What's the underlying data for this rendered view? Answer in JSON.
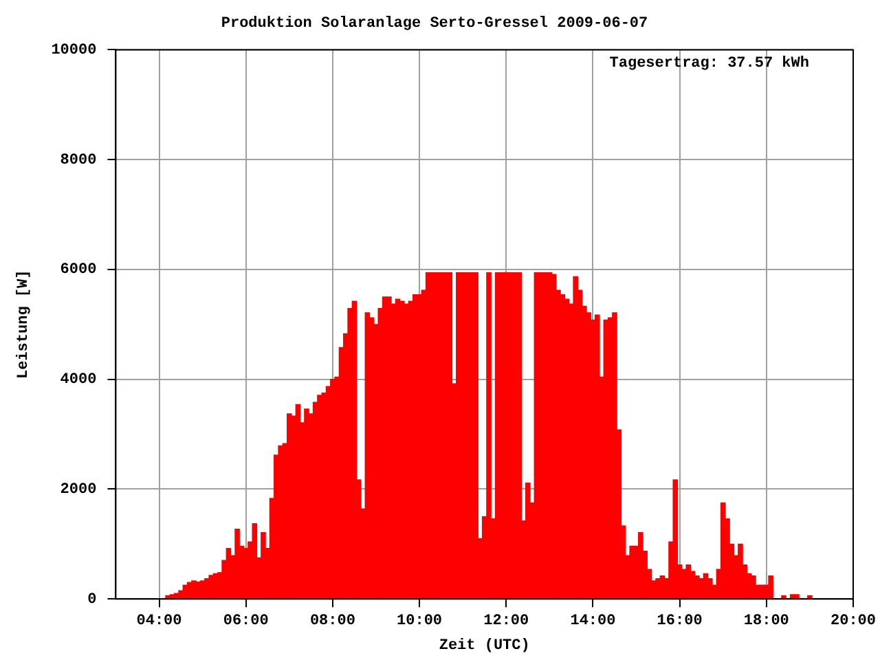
{
  "chart_data": {
    "type": "bar",
    "title": "Produktion Solaranlage Serto-Gressel 2009-06-07",
    "xlabel": "Zeit (UTC)",
    "ylabel": "Leistung [W]",
    "annotations": [
      "Tagesertrag: 37.57 kWh"
    ],
    "x": [
      4.0,
      4.1,
      4.2,
      4.3,
      4.4,
      4.5,
      4.6,
      4.7,
      4.8,
      4.9,
      5.0,
      5.1,
      5.2,
      5.3,
      5.4,
      5.5,
      5.6,
      5.7,
      5.8,
      5.9,
      6.0,
      6.1,
      6.2,
      6.3,
      6.4,
      6.5,
      6.6,
      6.7,
      6.8,
      6.9,
      7.0,
      7.1,
      7.2,
      7.3,
      7.4,
      7.5,
      7.6,
      7.7,
      7.8,
      7.9,
      8.0,
      8.1,
      8.2,
      8.3,
      8.4,
      8.5,
      8.6,
      8.7,
      8.8,
      8.9,
      9.0,
      9.1,
      9.2,
      9.3,
      9.4,
      9.5,
      9.6,
      9.7,
      9.8,
      9.9,
      10.0,
      10.1,
      10.2,
      10.3,
      10.4,
      10.5,
      10.6,
      10.7,
      10.8,
      10.9,
      11.0,
      11.1,
      11.2,
      11.3,
      11.4,
      11.5,
      11.6,
      11.7,
      11.8,
      11.9,
      12.0,
      12.1,
      12.2,
      12.3,
      12.4,
      12.5,
      12.6,
      12.7,
      12.8,
      12.9,
      13.0,
      13.1,
      13.2,
      13.3,
      13.4,
      13.5,
      13.6,
      13.7,
      13.8,
      13.9,
      14.0,
      14.1,
      14.2,
      14.3,
      14.4,
      14.5,
      14.6,
      14.7,
      14.8,
      14.9,
      15.0,
      15.1,
      15.2,
      15.3,
      15.4,
      15.5,
      15.6,
      15.7,
      15.8,
      15.9,
      16.0,
      16.1,
      16.2,
      16.3,
      16.4,
      16.5,
      16.6,
      16.7,
      16.8,
      16.9,
      17.0,
      17.1,
      17.2,
      17.3,
      17.4,
      17.5,
      17.6,
      17.7,
      17.8,
      17.9,
      18.0,
      18.1,
      18.2,
      18.3,
      18.4,
      18.5,
      18.6,
      18.7,
      18.8,
      18.9,
      19.0
    ],
    "values": [
      0,
      0,
      60,
      80,
      100,
      150,
      250,
      300,
      330,
      310,
      330,
      370,
      430,
      460,
      480,
      700,
      920,
      790,
      1270,
      960,
      920,
      1040,
      1370,
      750,
      1210,
      920,
      1830,
      2620,
      2790,
      2830,
      3370,
      3330,
      3540,
      3210,
      3460,
      3370,
      3580,
      3710,
      3750,
      3870,
      4000,
      4040,
      4580,
      4830,
      5290,
      5420,
      2170,
      1640,
      5210,
      5120,
      5000,
      5290,
      5500,
      5500,
      5370,
      5460,
      5420,
      5370,
      5420,
      5540,
      5540,
      5620,
      5940,
      5940,
      5940,
      5940,
      5940,
      5940,
      3920,
      5940,
      5940,
      5940,
      5940,
      5940,
      1100,
      1500,
      5940,
      1460,
      5940,
      5940,
      5940,
      5940,
      5940,
      5940,
      1420,
      2110,
      1750,
      5940,
      5940,
      5940,
      5940,
      5910,
      5620,
      5540,
      5460,
      5370,
      5870,
      5620,
      5330,
      5210,
      5080,
      5170,
      4040,
      5080,
      5120,
      5210,
      3080,
      1330,
      790,
      960,
      960,
      1210,
      870,
      540,
      330,
      370,
      420,
      370,
      1040,
      2170,
      620,
      540,
      620,
      500,
      420,
      370,
      460,
      370,
      250,
      540,
      1750,
      1460,
      1000,
      790,
      1000,
      620,
      460,
      420,
      250,
      250,
      250,
      420,
      0,
      0,
      60,
      0,
      80,
      80,
      0,
      0,
      60
    ],
    "color": "#ff0000",
    "xlim": [
      3,
      20
    ],
    "xticks": [
      {
        "value": 4,
        "label": "04:00"
      },
      {
        "value": 6,
        "label": "06:00"
      },
      {
        "value": 8,
        "label": "08:00"
      },
      {
        "value": 10,
        "label": "10:00"
      },
      {
        "value": 12,
        "label": "12:00"
      },
      {
        "value": 14,
        "label": "14:00"
      },
      {
        "value": 16,
        "label": "16:00"
      },
      {
        "value": 18,
        "label": "18:00"
      },
      {
        "value": 20,
        "label": "20:00"
      }
    ],
    "ylim": [
      0,
      10000
    ],
    "yticks": [
      0,
      2000,
      4000,
      6000,
      8000,
      10000
    ],
    "grid": true,
    "legend": false
  }
}
